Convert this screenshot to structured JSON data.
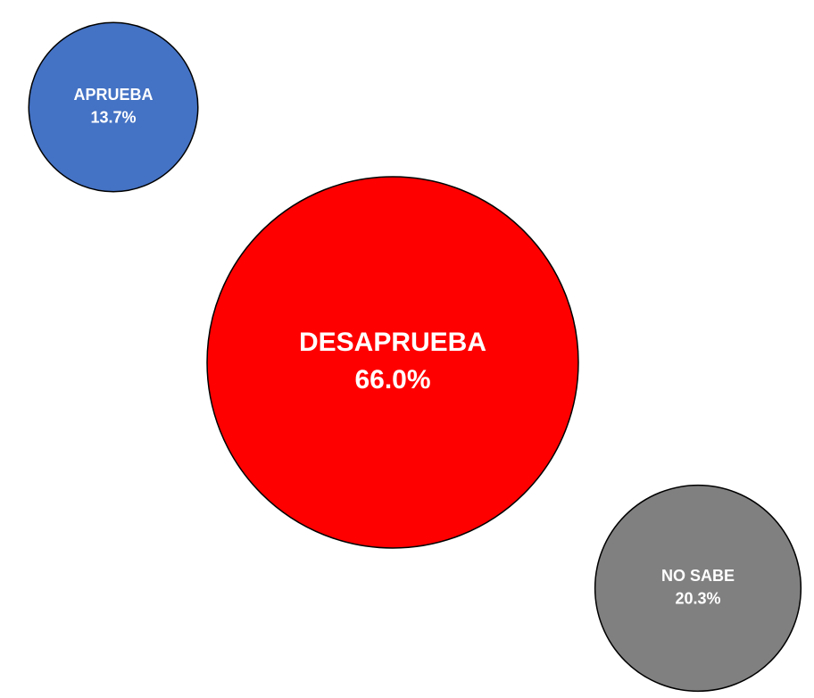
{
  "chart_data": {
    "type": "bubble",
    "categories": [
      "APRUEBA",
      "DESAPRUEBA",
      "NO SABE"
    ],
    "values": [
      13.7,
      66.0,
      20.3
    ],
    "value_labels": [
      "13.7%",
      "66.0%",
      "20.3%"
    ],
    "colors": [
      "#4472c4",
      "#ff0000",
      "#808080"
    ]
  }
}
